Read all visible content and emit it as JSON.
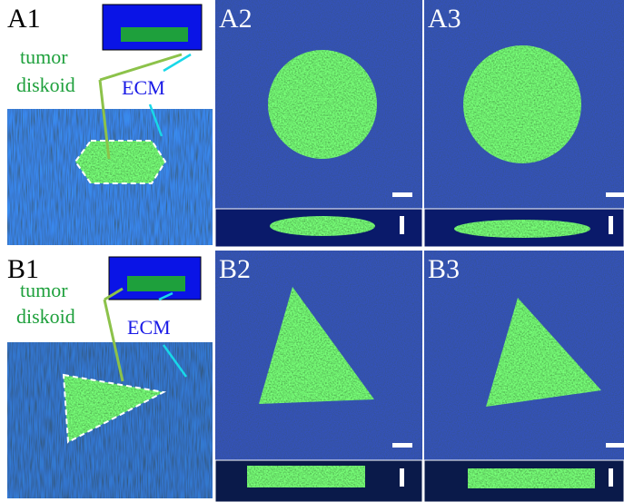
{
  "panels": [
    {
      "label": "A1",
      "texts": [
        "tumor",
        "diskoid",
        "ECM"
      ]
    },
    {
      "label": "A2"
    },
    {
      "label": "A3"
    },
    {
      "label": "B1",
      "texts": [
        "tumor",
        "diskoid",
        "ECM"
      ]
    },
    {
      "label": "B2"
    },
    {
      "label": "B3"
    }
  ]
}
